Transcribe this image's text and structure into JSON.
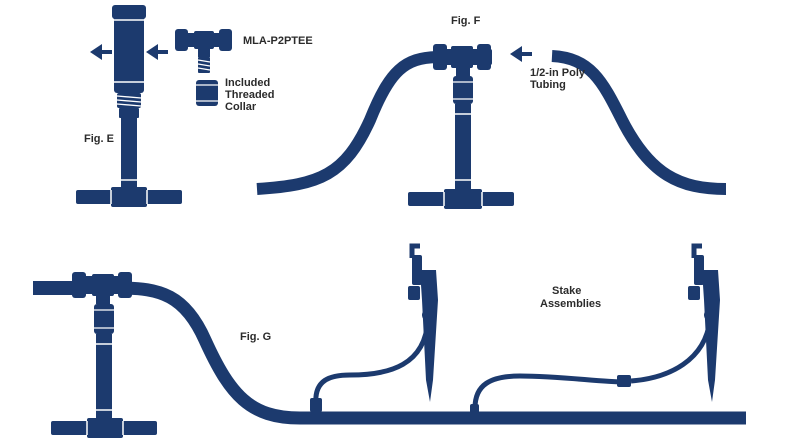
{
  "labels": {
    "fig_e": "Fig. E",
    "fig_f": "Fig. F",
    "fig_g": "Fig. G",
    "part_number": "MLA-P2PTEE",
    "collar_line1": "Included",
    "collar_line2": "Threaded",
    "collar_line3": "Collar",
    "tubing_line1": "1/2-in Poly",
    "tubing_line2": "Tubing",
    "stake_line1": "Stake",
    "stake_line2": "Assemblies"
  },
  "colors": {
    "pipe": "#1c3a6e",
    "highlight": "#ffffff",
    "text": "#2b2b2b"
  },
  "icons": [
    "arrow-left-icon",
    "arrow-left-icon",
    "arrow-left-icon"
  ]
}
